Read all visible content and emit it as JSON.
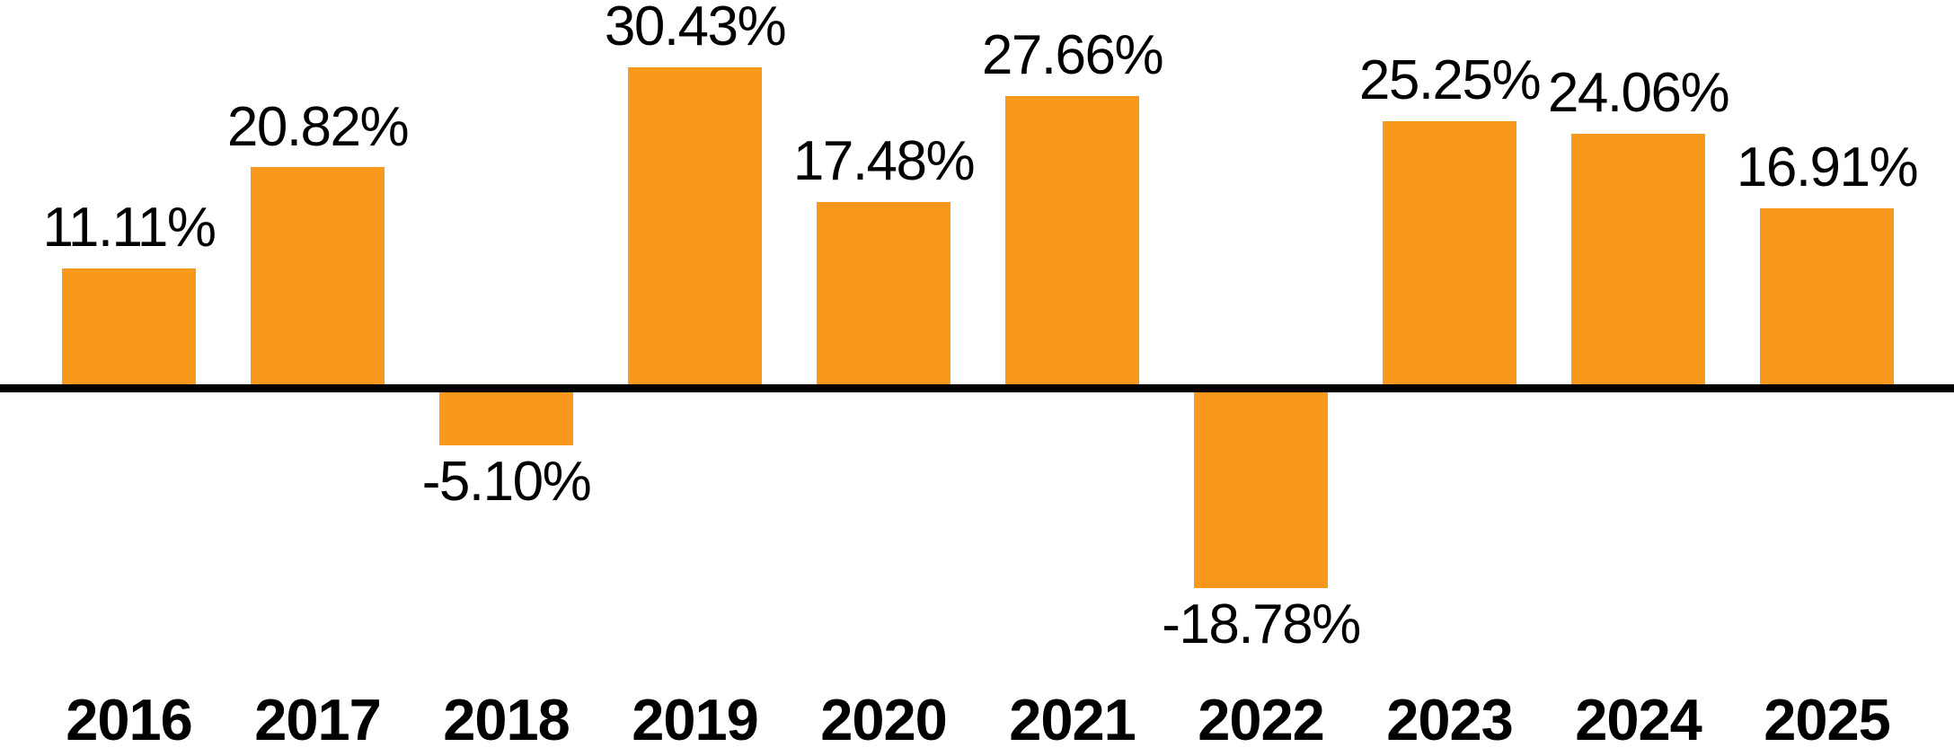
{
  "chart_data": {
    "type": "bar",
    "title": "",
    "xlabel": "",
    "ylabel": "",
    "categories": [
      "2016",
      "2017",
      "2018",
      "2019",
      "2020",
      "2021",
      "2022",
      "2023",
      "2024",
      "2025"
    ],
    "values": [
      11.11,
      20.82,
      -5.1,
      30.43,
      17.48,
      27.66,
      -18.78,
      25.25,
      24.06,
      16.91
    ],
    "value_labels": [
      "11.11%",
      "20.82%",
      "-5.10%",
      "30.43%",
      "17.48%",
      "27.66%",
      "-18.78%",
      "25.25%",
      "24.06%",
      "16.91%"
    ],
    "ylim": [
      -18.78,
      30.43
    ],
    "grid": false,
    "legend": false,
    "bar_color": "#F8981D",
    "axis_line_color": "#000000",
    "label_color": "#000000",
    "background_color": "#FFFFFF"
  }
}
